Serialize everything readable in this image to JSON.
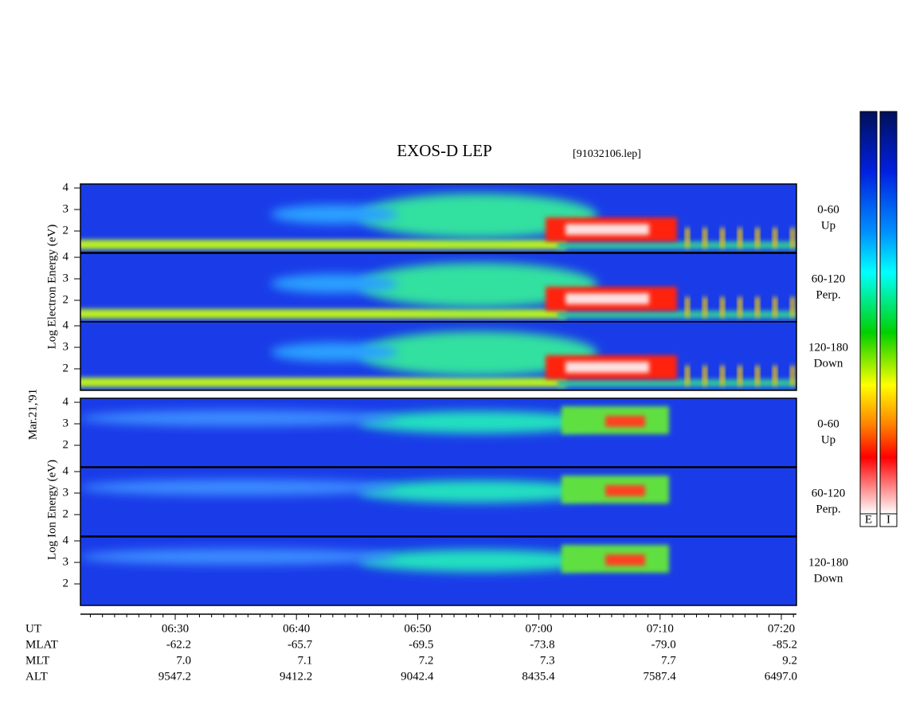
{
  "title": "EXOS-D LEP",
  "file": "[91032106.lep]",
  "side_labels": {
    "electron": "Log Electron Energy (eV)",
    "date": "Mar.21,'91",
    "ion": "Log Ion Energy (eV)"
  },
  "panels": [
    {
      "species": "electron",
      "ticks": [
        "4",
        "3",
        "2"
      ],
      "label": [
        "0-60",
        "Up"
      ]
    },
    {
      "species": "electron",
      "ticks": [
        "4",
        "3",
        "2"
      ],
      "label": [
        "60-120",
        "Perp."
      ]
    },
    {
      "species": "electron",
      "ticks": [
        "4",
        "3",
        "2"
      ],
      "label": [
        "120-180",
        "Down"
      ]
    },
    {
      "species": "ion",
      "ticks": [
        "4",
        "3",
        "2"
      ],
      "label": [
        "0-60",
        "Up"
      ]
    },
    {
      "species": "ion",
      "ticks": [
        "4",
        "3",
        "2"
      ],
      "label": [
        "60-120",
        "Perp."
      ]
    },
    {
      "species": "ion",
      "ticks": [
        "4",
        "3",
        "2"
      ],
      "label": [
        "120-180",
        "Down"
      ]
    }
  ],
  "time_axis": {
    "rows": [
      {
        "name": "UT",
        "values": [
          "06:30",
          "06:40",
          "06:50",
          "07:00",
          "07:10",
          "07:20"
        ]
      },
      {
        "name": "MLAT",
        "values": [
          "-62.2",
          "-65.7",
          "-69.5",
          "-73.8",
          "-79.0",
          "-85.2"
        ]
      },
      {
        "name": "MLT",
        "values": [
          "7.0",
          "7.1",
          "7.2",
          "7.3",
          "7.7",
          "9.2"
        ]
      },
      {
        "name": "ALT",
        "values": [
          "9547.2",
          "9412.2",
          "9042.4",
          "8435.4",
          "7587.4",
          "6497.0"
        ]
      }
    ]
  },
  "colorbars": [
    "E",
    "I"
  ]
}
